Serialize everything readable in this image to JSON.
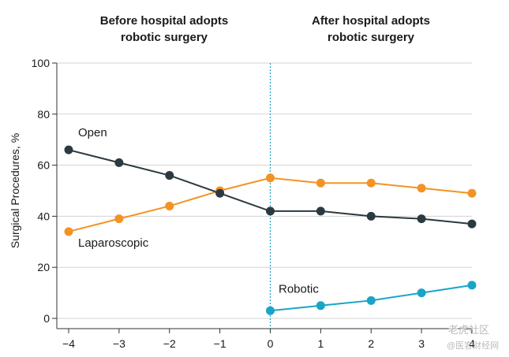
{
  "chart_data": {
    "type": "line",
    "x": [
      -4,
      -3,
      -2,
      -1,
      0,
      1,
      2,
      3,
      4
    ],
    "ylabel": "Surgical Procedures, %",
    "ylim": [
      0,
      100
    ],
    "yticks": [
      0,
      20,
      40,
      60,
      80,
      100
    ],
    "xticks": [
      -4,
      -3,
      -2,
      -1,
      0,
      1,
      2,
      3,
      4
    ],
    "grid": true,
    "divider_x": 0,
    "headers": {
      "before": [
        "Before hospital adopts",
        "robotic surgery"
      ],
      "after": [
        "After hospital adopts",
        "robotic surgery"
      ]
    },
    "series": [
      {
        "name": "Open",
        "color": "#2b3a40",
        "x": [
          -4,
          -3,
          -2,
          -1,
          0,
          1,
          2,
          3,
          4
        ],
        "values": [
          66,
          61,
          56,
          49,
          42,
          42,
          40,
          39,
          37
        ]
      },
      {
        "name": "Laparoscopic",
        "color": "#f39323",
        "x": [
          -4,
          -3,
          -2,
          -1,
          0,
          1,
          2,
          3,
          4
        ],
        "values": [
          34,
          39,
          44,
          50,
          55,
          53,
          53,
          51,
          49
        ]
      },
      {
        "name": "Robotic",
        "color": "#1aa4c8",
        "x": [
          0,
          1,
          2,
          3,
          4
        ],
        "values": [
          3,
          5,
          7,
          10,
          13
        ]
      }
    ],
    "divider_color": "#1aa4c8"
  },
  "watermark": {
    "line1": "老虎社区",
    "line2": "@医客财经网"
  }
}
